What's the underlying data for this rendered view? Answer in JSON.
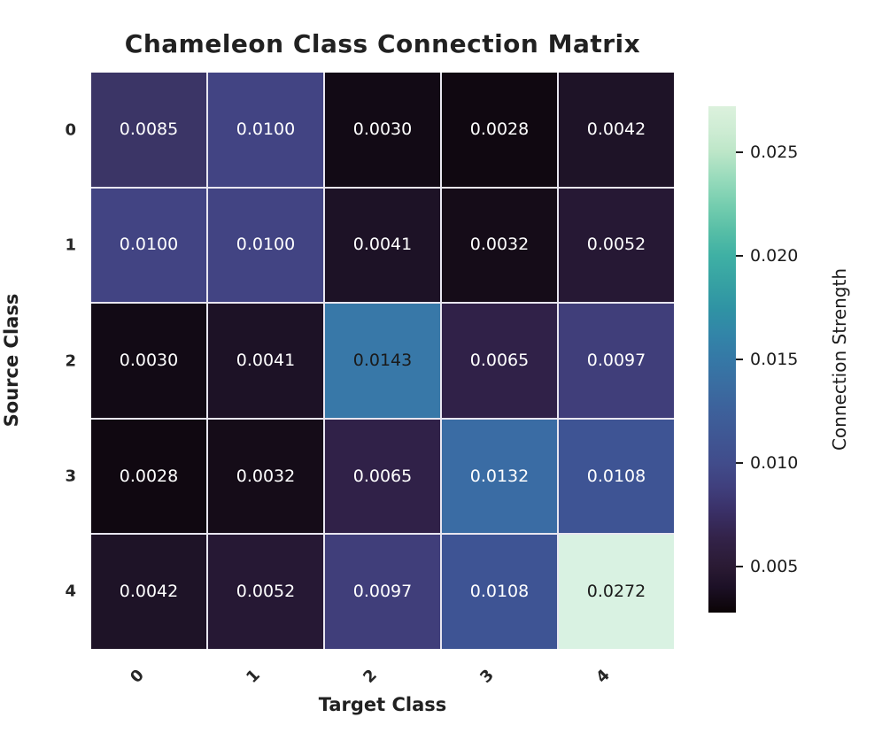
{
  "figure": {
    "background": "#ffffff",
    "text_color": "#212121",
    "tick_color": "#262626",
    "gridline_color": "#e8e6f0"
  },
  "chart_data": {
    "type": "heatmap",
    "title": "Chameleon Class Connection Matrix",
    "xlabel": "Target Class",
    "ylabel": "Source Class",
    "x_tick_labels": [
      "0",
      "1",
      "2",
      "3",
      "4"
    ],
    "y_tick_labels": [
      "0",
      "1",
      "2",
      "3",
      "4"
    ],
    "values": [
      [
        0.0085,
        0.01,
        0.003,
        0.0028,
        0.0042
      ],
      [
        0.01,
        0.01,
        0.0041,
        0.0032,
        0.0052
      ],
      [
        0.003,
        0.0041,
        0.0143,
        0.0065,
        0.0097
      ],
      [
        0.0028,
        0.0032,
        0.0065,
        0.0132,
        0.0108
      ],
      [
        0.0042,
        0.0052,
        0.0097,
        0.0108,
        0.0272
      ]
    ],
    "cell_labels": [
      [
        "0.0085",
        "0.0100",
        "0.0030",
        "0.0028",
        "0.0042"
      ],
      [
        "0.0100",
        "0.0100",
        "0.0041",
        "0.0032",
        "0.0052"
      ],
      [
        "0.0030",
        "0.0041",
        "0.0143",
        "0.0065",
        "0.0097"
      ],
      [
        "0.0028",
        "0.0032",
        "0.0065",
        "0.0132",
        "0.0108"
      ],
      [
        "0.0042",
        "0.0052",
        "0.0097",
        "0.0108",
        "0.0272"
      ]
    ],
    "cell_colors": [
      [
        "#3b3566",
        "#424483",
        "#120a15",
        "#100811",
        "#1e1327"
      ],
      [
        "#424483",
        "#424483",
        "#1d1226",
        "#150c18",
        "#261834"
      ],
      [
        "#120a15",
        "#1d1226",
        "#3878a8",
        "#302148",
        "#403e7a"
      ],
      [
        "#100811",
        "#150c18",
        "#302148",
        "#3a6ca4",
        "#3e5494"
      ],
      [
        "#1e1327",
        "#261834",
        "#403e7a",
        "#3e5494",
        "#d9f2e2"
      ]
    ],
    "cell_text_colors": [
      [
        "#ffffff",
        "#ffffff",
        "#ffffff",
        "#ffffff",
        "#ffffff"
      ],
      [
        "#ffffff",
        "#ffffff",
        "#ffffff",
        "#ffffff",
        "#ffffff"
      ],
      [
        "#ffffff",
        "#ffffff",
        "#1a1a1a",
        "#ffffff",
        "#ffffff"
      ],
      [
        "#ffffff",
        "#ffffff",
        "#ffffff",
        "#ffffff",
        "#ffffff"
      ],
      [
        "#ffffff",
        "#ffffff",
        "#ffffff",
        "#ffffff",
        "#1a1a1a"
      ]
    ],
    "vmin": 0.0028,
    "vmax": 0.0272,
    "legend_position": "right",
    "grid": false,
    "colorbar": {
      "label": "Connection Strength",
      "ticks": [
        {
          "value": 0.005,
          "label": "0.005"
        },
        {
          "value": 0.01,
          "label": "0.010"
        },
        {
          "value": 0.015,
          "label": "0.015"
        },
        {
          "value": 0.02,
          "label": "0.020"
        },
        {
          "value": 0.025,
          "label": "0.025"
        }
      ],
      "gradient_stops": [
        {
          "t": 0.0,
          "color": "#0b0405"
        },
        {
          "t": 0.05,
          "color": "#1c1026"
        },
        {
          "t": 0.09,
          "color": "#2a1a33"
        },
        {
          "t": 0.15,
          "color": "#33234a"
        },
        {
          "t": 0.2,
          "color": "#3a3067"
        },
        {
          "t": 0.25,
          "color": "#40407e"
        },
        {
          "t": 0.295,
          "color": "#414c8b"
        },
        {
          "t": 0.35,
          "color": "#3f5794"
        },
        {
          "t": 0.4,
          "color": "#3d619b"
        },
        {
          "t": 0.45,
          "color": "#3a6da1"
        },
        {
          "t": 0.5,
          "color": "#3578a6"
        },
        {
          "t": 0.55,
          "color": "#3285a8"
        },
        {
          "t": 0.6,
          "color": "#2f93a4"
        },
        {
          "t": 0.65,
          "color": "#36a1a3"
        },
        {
          "t": 0.705,
          "color": "#3fb0a4"
        },
        {
          "t": 0.75,
          "color": "#55bda6"
        },
        {
          "t": 0.8,
          "color": "#72ccae"
        },
        {
          "t": 0.85,
          "color": "#93d9ba"
        },
        {
          "t": 0.91,
          "color": "#bde6c8"
        },
        {
          "t": 0.95,
          "color": "#cdecd3"
        },
        {
          "t": 1.0,
          "color": "#dcf1dd"
        }
      ]
    }
  }
}
